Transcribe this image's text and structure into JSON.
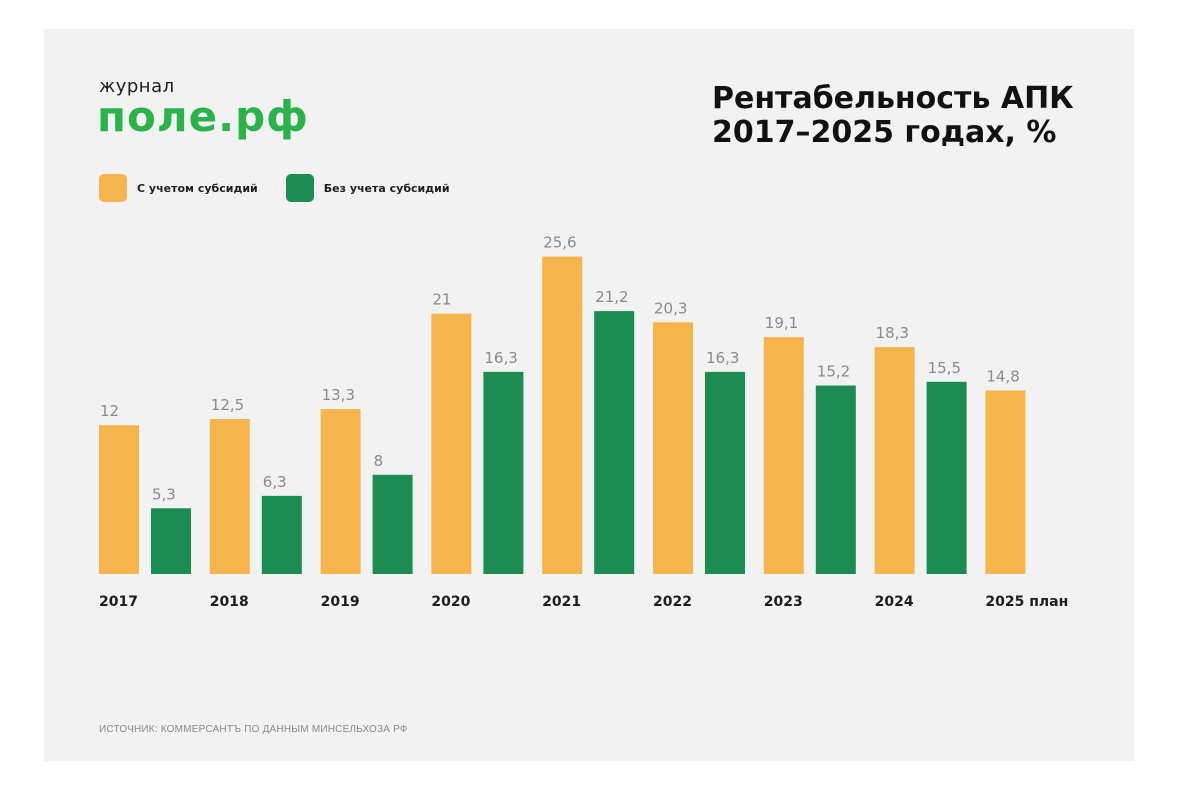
{
  "logo": {
    "small": "журнал",
    "big": "поле.рф"
  },
  "title": [
    "Рентабельность АПК",
    "2017–2025 годах, %"
  ],
  "colors": {
    "with_subsidies": "#f5b54c",
    "without_subsidies": "#1b8c52",
    "logo": "#2bb34b",
    "label": "#8a8a8a"
  },
  "legend": [
    {
      "label": "С учетом субсидий",
      "color": "#f5b54c"
    },
    {
      "label": "Без учета субсидий",
      "color": "#1b8c52"
    }
  ],
  "chart_data": {
    "type": "bar",
    "categories": [
      "2017",
      "2018",
      "2019",
      "2020",
      "2021",
      "2022",
      "2023",
      "2024",
      "2025 план"
    ],
    "series": [
      {
        "name": "С учетом субсидий",
        "values": [
          12,
          12.5,
          13.3,
          21,
          25.6,
          20.3,
          19.1,
          18.3,
          14.8
        ],
        "labels": [
          "12",
          "12,5",
          "13,3",
          "21",
          "25,6",
          "20,3",
          "19,1",
          "18,3",
          "14,8"
        ]
      },
      {
        "name": "Без учета субсидий",
        "values": [
          5.3,
          6.3,
          8,
          16.3,
          21.2,
          16.3,
          15.2,
          15.5,
          null
        ],
        "labels": [
          "5,3",
          "6,3",
          "8",
          "16,3",
          "21,2",
          "16,3",
          "15,2",
          "15,5",
          ""
        ]
      }
    ],
    "title": "Рентабельность АПК 2017–2025 годах, %",
    "xlabel": "",
    "ylabel": "",
    "ylim": [
      0,
      26
    ],
    "grid": false,
    "legend_position": "top-left"
  },
  "source": "ИСТОЧНИК: КОММЕРСАНТЪ ПО ДАННЫМ МИНСЕЛЬХОЗА РФ"
}
